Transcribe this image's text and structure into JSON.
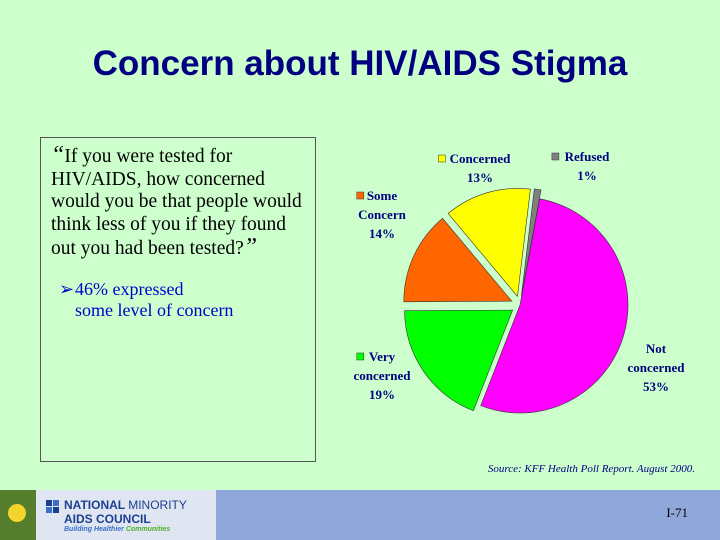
{
  "slide": {
    "title": "Concern about HIV/AIDS Stigma",
    "question": {
      "open_mark": "“",
      "text": "If you were tested for HIV/AIDS, how concerned would you be that people would think less of you if they found out you had been tested?",
      "close_mark": "”"
    },
    "bullet": {
      "line1": "46% expressed",
      "line2": "some level of concern"
    },
    "source": "Source: KFF Health Poll Report.  August 2000.",
    "page_number": "I-71"
  },
  "logo": {
    "line1_a": "NATIONAL ",
    "line1_b": "MINORITY",
    "line2": "AIDS COUNCIL",
    "line3_a": "Building Healthier ",
    "line3_b": "Communities"
  },
  "chart_data": {
    "type": "pie",
    "title": "",
    "slices": [
      {
        "name": "Not concerned",
        "label_lines": [
          "Not",
          "concerned"
        ],
        "value": 53,
        "pct_label": "53%",
        "color": "#ff00ff",
        "exploded": false
      },
      {
        "name": "Very concerned",
        "label_lines": [
          "Very",
          "concerned"
        ],
        "value": 19,
        "pct_label": "19%",
        "color": "#00ff00",
        "exploded": true
      },
      {
        "name": "Some Concern",
        "label_lines": [
          "Some",
          "Concern"
        ],
        "value": 14,
        "pct_label": "14%",
        "color": "#ff6600",
        "exploded": true
      },
      {
        "name": "Concerned",
        "label_lines": [
          "Concerned"
        ],
        "value": 13,
        "pct_label": "13%",
        "color": "#ffff00",
        "exploded": true
      },
      {
        "name": "Refused",
        "label_lines": [
          "Refused"
        ],
        "value": 1,
        "pct_label": "1%",
        "color": "#808080",
        "exploded": true
      }
    ]
  },
  "colors": {
    "background": "#ccffcc",
    "title": "#000080",
    "bullet_text": "#0000cc",
    "footer": "#8fa8d9"
  }
}
